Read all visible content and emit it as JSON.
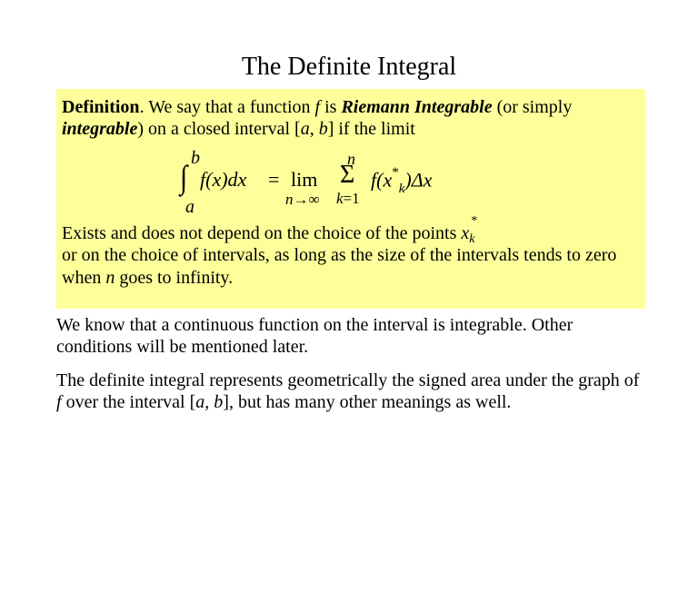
{
  "colors": {
    "highlight_bg": "#feff9b",
    "text": "#000000",
    "page_bg": "#ffffff"
  },
  "fonts": {
    "family": "Times New Roman",
    "title_size": 28,
    "body_size": 20,
    "formula_size": 22
  },
  "title": "The Definite Integral",
  "def": {
    "lead_bold": "Definition",
    "lead_rest1": ". We say that a function ",
    "f": "f",
    "lead_rest2": " is ",
    "ri": "Riemann Integrable",
    "lead_rest3": " (or simply ",
    "integ": "integrable",
    "lead_rest4": ") on a closed interval [",
    "a": "a",
    "comma": ", ",
    "b": "b",
    "lead_rest5": "] if  the limit"
  },
  "formula": {
    "int_top": "b",
    "int_sym": "∫",
    "int_bot": "a",
    "fx": "f(x)dx",
    "eq": "=",
    "lim": "lim",
    "lim_sub_n": "n",
    "lim_sub_arrow": "→",
    "lim_sub_inf": "∞",
    "sum_top": "n",
    "sum_sym": "Σ",
    "sum_bot_k": "k",
    "sum_bot_eq": "=",
    "sum_bot_1": "1",
    "summand_f": "f(x",
    "summand_star": "*",
    "summand_k": "k",
    "summand_close": ")Δx"
  },
  "def_tail": {
    "t1": "Exists and does not depend on the choice of the points  ",
    "x": "x",
    "star": "*",
    "k": "k",
    "t2": "or on the choice of intervals, as long as the size of the intervals tends to zero when ",
    "n": "n",
    "t3": " goes to infinity."
  },
  "p2": {
    "text": "We know that a continuous function on the interval is integrable. Other conditions will be mentioned later."
  },
  "p3": {
    "t1": "The definite integral represents geometrically the signed area under the graph of ",
    "f": "f",
    "t2": " over the interval [",
    "a": "a",
    "comma": ", ",
    "b": "b",
    "t3": "], but has many other meanings as well."
  }
}
